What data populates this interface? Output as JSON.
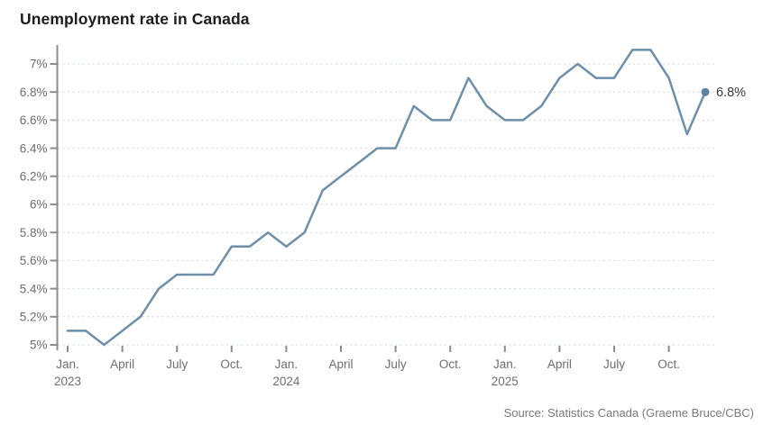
{
  "page": {
    "title": "Unemployment rate in Canada",
    "source": "Source: Statistics Canada (Graeme Bruce/CBC)"
  },
  "chart_data": {
    "type": "line",
    "title": "Unemployment rate in Canada",
    "xlabel": "",
    "ylabel": "",
    "unit": "%",
    "x": [
      "Jan. 2023",
      "Feb. 2023",
      "Mar. 2023",
      "Apr. 2023",
      "May 2023",
      "Jun. 2023",
      "Jul. 2023",
      "Aug. 2023",
      "Sep. 2023",
      "Oct. 2023",
      "Nov. 2023",
      "Dec. 2023",
      "Jan. 2024",
      "Feb. 2024",
      "Mar. 2024",
      "Apr. 2024",
      "May 2024",
      "Jun. 2024",
      "Jul. 2024",
      "Aug. 2024",
      "Sep. 2024",
      "Oct. 2024",
      "Nov. 2024",
      "Dec. 2024",
      "Jan. 2025",
      "Feb. 2025",
      "Mar. 2025",
      "Apr. 2025",
      "May 2025",
      "Jun. 2025",
      "Jul. 2025",
      "Aug. 2025",
      "Sep. 2025",
      "Oct. 2025",
      "Nov. 2025",
      "Dec. 2025"
    ],
    "values": [
      5.1,
      5.1,
      5.0,
      5.1,
      5.2,
      5.4,
      5.5,
      5.5,
      5.5,
      5.7,
      5.7,
      5.8,
      5.7,
      5.8,
      6.1,
      6.2,
      6.3,
      6.4,
      6.4,
      6.7,
      6.6,
      6.6,
      6.9,
      6.7,
      6.6,
      6.6,
      6.7,
      6.9,
      7.0,
      6.9,
      6.9,
      7.1,
      7.1,
      6.9,
      6.5,
      6.8
    ],
    "ylim": [
      5.0,
      7.0
    ],
    "y_tick_step": 0.2,
    "y_tick_labels": [
      "5%",
      "5.2%",
      "5.4%",
      "5.6%",
      "5.8%",
      "6%",
      "6.2%",
      "6.4%",
      "6.6%",
      "6.8%",
      "7%"
    ],
    "x_tick_indices": [
      0,
      3,
      6,
      9,
      12,
      15,
      18,
      21,
      24,
      27,
      30,
      33
    ],
    "x_tick_labels": [
      "Jan.",
      "April",
      "July",
      "Oct.",
      "Jan.",
      "April",
      "July",
      "Oct.",
      "Jan.",
      "April",
      "July",
      "Oct."
    ],
    "x_tick_years": [
      "2023",
      "",
      "",
      "",
      "2024",
      "",
      "",
      "",
      "2025",
      "",
      "",
      ""
    ],
    "end_label": "6.8%",
    "grid": "horizontal-dashed",
    "legend": "none",
    "colors": {
      "line": "#6d8fa9",
      "end_dot": "#5b82a0",
      "grid": "#ccd7df",
      "axis": "#8d8d8d",
      "tick_text": "#6e6e6e",
      "annotation": "#333a42",
      "title_text": "#1d1d1d",
      "source_text": "#7a7a7a"
    }
  }
}
